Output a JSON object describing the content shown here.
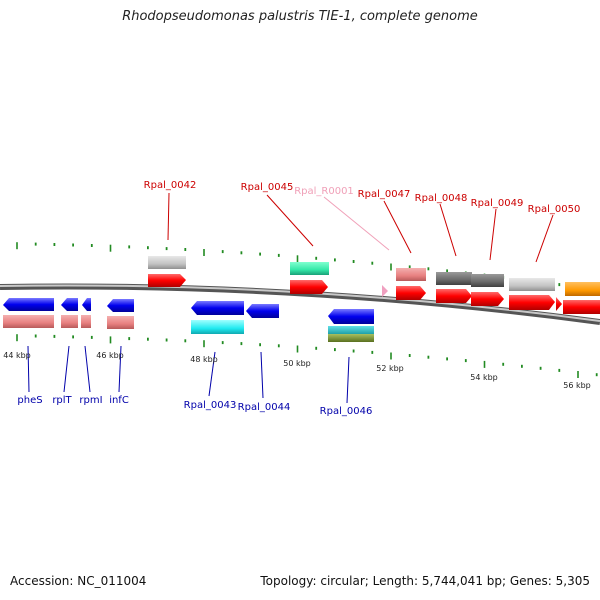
{
  "title": "Rhodopseudomonas palustris TIE-1, complete genome",
  "footer": {
    "accession": "Accession: NC_011004",
    "summary": "Topology: circular; Length: 5,744,041 bp; Genes: 5,305"
  },
  "colors": {
    "backbone": "#8a8a8a",
    "forward_gene": "#ff0000",
    "reverse_gene": "#0000ee",
    "forward_label": "#cc0000",
    "reverse_label": "#0000aa",
    "rna_label": "#f0a0b8",
    "tick": "#228b22"
  },
  "scale": {
    "labels": [
      "44 kbp",
      "46 kbp",
      "48 kbp",
      "50 kbp",
      "52 kbp",
      "54 kbp",
      "56 kbp"
    ]
  },
  "forward_genes": [
    {
      "label": "Rpal_0042",
      "kind": "cds"
    },
    {
      "label": "Rpal_0045",
      "kind": "cds"
    },
    {
      "label": "Rpal_R0001",
      "kind": "rna"
    },
    {
      "label": "Rpal_0047",
      "kind": "cds"
    },
    {
      "label": "Rpal_0048",
      "kind": "cds"
    },
    {
      "label": "Rpal_0049",
      "kind": "cds"
    },
    {
      "label": "Rpal_0050",
      "kind": "cds"
    }
  ],
  "reverse_genes": [
    {
      "label": "pheS"
    },
    {
      "label": "rplT"
    },
    {
      "label": "rpmI"
    },
    {
      "label": "infC"
    },
    {
      "label": "Rpal_0043"
    },
    {
      "label": "Rpal_0044"
    },
    {
      "label": "Rpal_0046"
    }
  ]
}
